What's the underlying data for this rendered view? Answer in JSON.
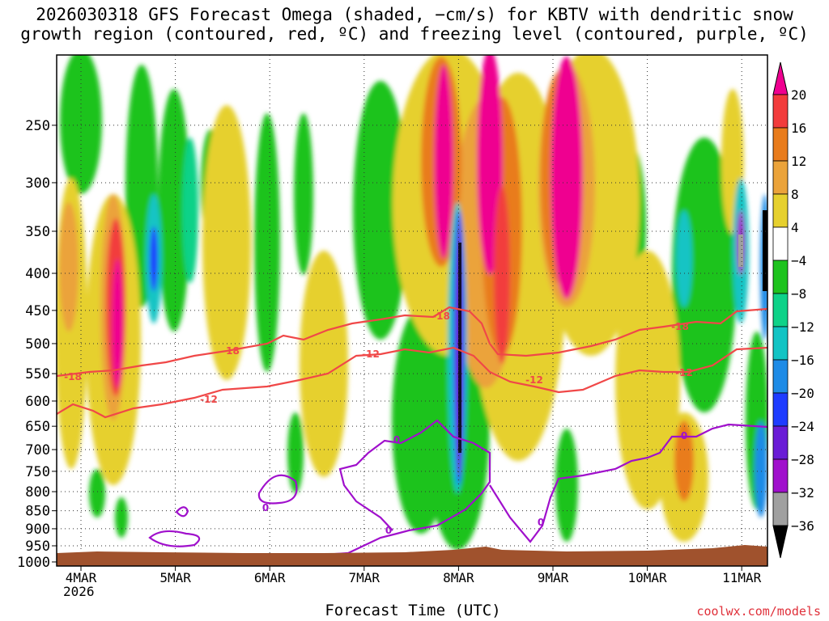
{
  "title": {
    "line1": "2026030318 GFS Forecast Omega (shaded, −cm/s) for KBTV with dendritic snow",
    "line2": "growth region (contoured, red, ºC) and freezing level (contoured, purple, ºC)"
  },
  "credit": "coolwx.com/models",
  "chart_data": {
    "type": "heatmap",
    "xlabel": "Forecast Time (UTC)",
    "x_ticks": [
      "4MAR",
      "5MAR",
      "6MAR",
      "7MAR",
      "8MAR",
      "9MAR",
      "10MAR",
      "11MAR"
    ],
    "x_year_label": "2026",
    "y_ticks": [
      250,
      300,
      350,
      400,
      450,
      500,
      550,
      600,
      650,
      700,
      750,
      800,
      850,
      900,
      950,
      1000
    ],
    "ylim": [
      1013,
      200
    ],
    "y_scale": "log-pressure",
    "grid": true,
    "colorbar": {
      "labels": [
        "20",
        "16",
        "12",
        "8",
        "4",
        "−4",
        "−8",
        "−12",
        "−16",
        "−20",
        "−24",
        "−28",
        "−32",
        "−36"
      ],
      "colors": [
        "#ef0090",
        "#f23c3c",
        "#e97c1c",
        "#eba33a",
        "#e6d02e",
        "#ffffff",
        "#1ec31e",
        "#0ed288",
        "#12c4c4",
        "#1e8be6",
        "#1e3cff",
        "#6a1cd6",
        "#a010cc",
        "#a0a0a0",
        "#000000"
      ]
    },
    "contours": {
      "dendritic": {
        "color": "#f04848",
        "labels": [
          "-18",
          "-12"
        ]
      },
      "freezing": {
        "color": "#a010cc",
        "labels": [
          "0"
        ]
      }
    }
  }
}
